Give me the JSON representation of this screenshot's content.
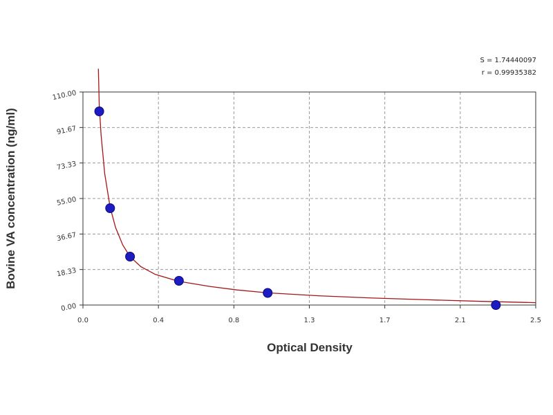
{
  "chart_data": {
    "type": "scatter",
    "xlabel": "Optical Density",
    "ylabel": "Bovine VA concentration (ng/ml)",
    "xlim": [
      0.0,
      2.5
    ],
    "ylim": [
      0.0,
      110.0
    ],
    "x_ticks": [
      "0.0",
      "0.4",
      "0.8",
      "1.3",
      "1.7",
      "2.1",
      "2.5"
    ],
    "y_ticks": [
      "0.00",
      "18.33",
      "36.67",
      "55.00",
      "73.33",
      "91.67",
      "110.00"
    ],
    "grid": true,
    "stats": {
      "s": "S = 1.74440097",
      "r": "r = 0.99935382"
    },
    "series": [
      {
        "points": [
          {
            "x": 0.09,
            "y": 100.0
          },
          {
            "x": 0.15,
            "y": 50.0
          },
          {
            "x": 0.26,
            "y": 25.0
          },
          {
            "x": 0.53,
            "y": 12.5
          },
          {
            "x": 1.02,
            "y": 6.25
          },
          {
            "x": 2.28,
            "y": 0.0
          }
        ],
        "color": "#1c1cc0"
      }
    ],
    "fit_curve": {
      "color": "#a31515",
      "points": [
        {
          "x": 0.085,
          "y": 122.0
        },
        {
          "x": 0.09,
          "y": 103.0
        },
        {
          "x": 0.1,
          "y": 88.0
        },
        {
          "x": 0.12,
          "y": 68.0
        },
        {
          "x": 0.15,
          "y": 50.5
        },
        {
          "x": 0.18,
          "y": 40.0
        },
        {
          "x": 0.22,
          "y": 31.0
        },
        {
          "x": 0.26,
          "y": 25.0
        },
        {
          "x": 0.32,
          "y": 19.8
        },
        {
          "x": 0.4,
          "y": 15.8
        },
        {
          "x": 0.53,
          "y": 12.2
        },
        {
          "x": 0.7,
          "y": 9.6
        },
        {
          "x": 0.85,
          "y": 7.8
        },
        {
          "x": 1.02,
          "y": 6.3
        },
        {
          "x": 1.3,
          "y": 4.8
        },
        {
          "x": 1.6,
          "y": 3.6
        },
        {
          "x": 1.9,
          "y": 2.7
        },
        {
          "x": 2.2,
          "y": 1.9
        },
        {
          "x": 2.5,
          "y": 1.2
        }
      ]
    }
  }
}
